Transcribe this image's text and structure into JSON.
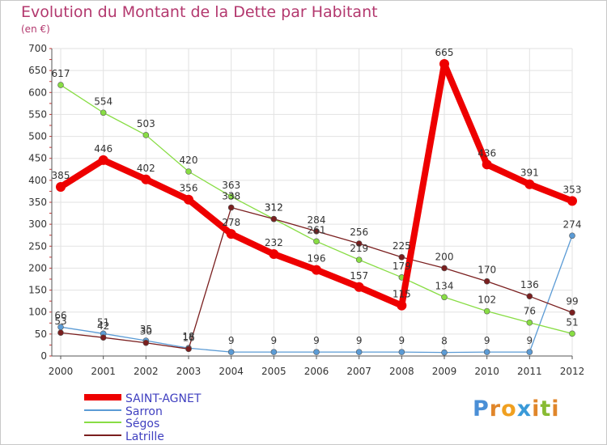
{
  "title": "Evolution du Montant de la Dette par Habitant",
  "subtitle": "(en €)",
  "logo": "Proxiti",
  "chart_data": {
    "type": "line",
    "title": "Evolution du Montant de la Dette par Habitant",
    "ylabel": "(en €)",
    "xlabel": "",
    "x": [
      "2000",
      "2001",
      "2002",
      "2003",
      "2004",
      "2005",
      "2006",
      "2007",
      "2008",
      "2009",
      "2010",
      "2011",
      "2012"
    ],
    "ylim": [
      0,
      700
    ],
    "yticks": [
      0,
      50,
      100,
      150,
      200,
      250,
      300,
      350,
      400,
      450,
      500,
      550,
      600,
      650,
      700
    ],
    "grid": true,
    "legend_position": "bottom-left",
    "series": [
      {
        "name": "SAINT-AGNET",
        "color": "#ee0000",
        "values": [
          385,
          446,
          402,
          356,
          278,
          232,
          196,
          157,
          115,
          665,
          436,
          391,
          353
        ]
      },
      {
        "name": "Sarron",
        "color": "#5b9bd5",
        "values": [
          66,
          51,
          35,
          18,
          9,
          9,
          9,
          9,
          9,
          8,
          9,
          9,
          274
        ]
      },
      {
        "name": "Ségos",
        "color": "#88dd44",
        "values": [
          617,
          554,
          503,
          420,
          363,
          312,
          261,
          219,
          179,
          134,
          102,
          76,
          51
        ]
      },
      {
        "name": "Latrille",
        "color": "#7a1f1f",
        "values": [
          53,
          42,
          30,
          16,
          338,
          312,
          284,
          256,
          225,
          200,
          170,
          136,
          99
        ]
      }
    ]
  }
}
